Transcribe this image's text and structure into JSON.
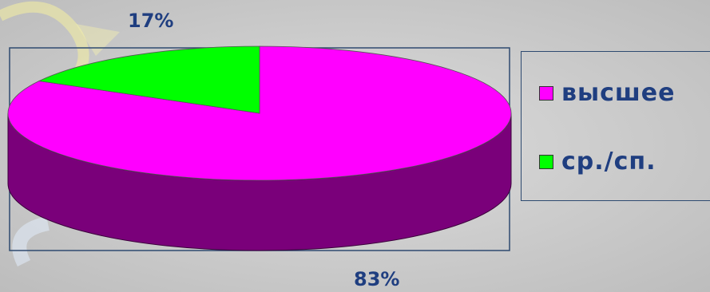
{
  "chart_data": {
    "type": "pie",
    "categories": [
      "высшее",
      "ср./сп."
    ],
    "values": [
      83,
      17
    ],
    "data_labels": [
      "83%",
      "17%"
    ],
    "colors": [
      "#ff00ff",
      "#00ff00"
    ],
    "side_color": "#7a007a",
    "legend_placement": "right",
    "three_d": true
  },
  "legend": {
    "items": [
      {
        "label": "высшее",
        "color": "#ff00ff"
      },
      {
        "label": "ср./сп.",
        "color": "#00ff00"
      }
    ]
  }
}
